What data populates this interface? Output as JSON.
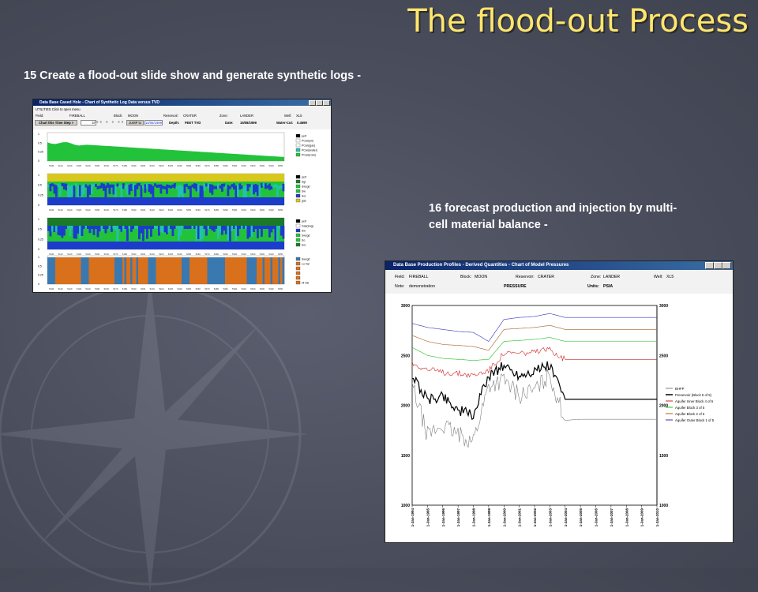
{
  "slide": {
    "title": "The flood-out Process",
    "caption_15": "15 Create a flood-out slide show and generate synthetic logs -",
    "caption_16": "16 forecast production and injection by multi-cell material balance -"
  },
  "log_window": {
    "title": "Data Base Cased Hole - Chart of Synthetic Log Data versus TVD",
    "menu": "UTILITIES   Click to open menu",
    "field_label": "Field:",
    "field": "FIREBALL",
    "block_label": "Block:",
    "block": "MOON",
    "reservoir_label": "Reservoir:",
    "reservoir": "CRATER",
    "zone_label": "Zone:",
    "zone": "LANDER",
    "well_label": "Well:",
    "well": "XL5",
    "timestep_button": "Chart this Time Step >",
    "timestep_value": "47",
    "date_value": "15/08/1999",
    "jump_button": "JUMP to",
    "depth_label": "Depth:",
    "depth": "FEET TVD",
    "date_label": "Date:",
    "date": "15/08/1999",
    "watercut_label": "Water-Cut:",
    "watercut": "0.4599",
    "legend1": [
      "perf",
      "PCws(oil)",
      "PCws(gas)",
      "PCws(water)",
      "PCws(rock)"
    ],
    "legend2": [
      "perf",
      "Sgr",
      "Swcgd",
      "Sw",
      "Sor",
      "gas"
    ],
    "legend3": [
      "perf",
      "Gas(swg)",
      "Sw",
      "Swcgd",
      "So",
      "Sor"
    ],
    "legend4": [
      "Swcgd",
      "Lo Val",
      "",
      "",
      "",
      "Hi Val"
    ],
    "colors": {
      "green": "#22c33a",
      "blue": "#1c3ccc",
      "yellow": "#d8c81c",
      "orange": "#d8701c",
      "steel": "#3a78b0"
    }
  },
  "pressure_window": {
    "title": "Data Base Production Profiles - Derived Quantities - Chart of Model Pressures",
    "field_label": "Field:",
    "field": "FIREBALL",
    "block_label": "Block:",
    "block": "MOON",
    "reservoir_label": "Reservoir:",
    "reservoir": "CRATER",
    "zone_label": "Zone:",
    "zone": "LANDER",
    "well_label": "Well:",
    "well": "XL5",
    "note_label": "Note:",
    "note": "demonstration",
    "chart_title": "PRESSURE",
    "units_label": "Units:",
    "units": "PSIA",
    "legend": [
      "BHFP",
      "Preservoir (Block 5 of 5)",
      "Aquifer Inner Block 4 of 5",
      "Aquifer Block 3 of 5",
      "Aquifer Block 2 of 5",
      "Aquifer Outer Block 1 of 5"
    ],
    "x_ticks": [
      "1-Jan-1994",
      "1-Jan-1995",
      "1-Jan-1996",
      "1-Jan-1997",
      "1-Jan-1998",
      "1-Jan-1999",
      "1-Jan-2000",
      "1-Jan-2001",
      "1-Jan-2002",
      "1-Jan-2003",
      "1-Jan-2004",
      "1-Jan-2005",
      "1-Jan-2006",
      "1-Jan-2007",
      "1-Jan-2008",
      "1-Jan-2009",
      "1-Jan-2010"
    ],
    "y_ticks": [
      "3000",
      "2500",
      "2000",
      "1500",
      "1000"
    ],
    "colors": {
      "bhfp": "#808080",
      "reservoir": "#000000",
      "inner": "#d02020",
      "mid": "#20c020",
      "block2": "#a06020",
      "outer": "#3030c0"
    }
  },
  "chart_data": {
    "type": "line",
    "title": "PRESSURE",
    "ylabel": "PSIA",
    "x": [
      "1-Jan-1994",
      "1-Jan-1995",
      "1-Jan-1996",
      "1-Jan-1997",
      "1-Jan-1998",
      "1-Jan-1999",
      "1-Jan-2000",
      "1-Jan-2001",
      "1-Jan-2002",
      "1-Jan-2003",
      "1-Jan-2004",
      "1-Jan-2005",
      "1-Jan-2006",
      "1-Jan-2007",
      "1-Jan-2008",
      "1-Jan-2009",
      "1-Jan-2010"
    ],
    "ylim": [
      1000,
      3000
    ],
    "series": [
      {
        "name": "Aquifer Outer Block 1 of 5",
        "values": [
          2820,
          2780,
          2760,
          2740,
          2730,
          2640,
          2860,
          2880,
          2890,
          2920,
          2880,
          2880,
          2880,
          2880,
          2880,
          2880,
          2880
        ]
      },
      {
        "name": "Aquifer Block 2 of 5",
        "values": [
          2700,
          2640,
          2610,
          2600,
          2590,
          2550,
          2760,
          2770,
          2780,
          2800,
          2760,
          2760,
          2760,
          2760,
          2760,
          2760,
          2760
        ]
      },
      {
        "name": "Aquifer Block 3 of 5",
        "values": [
          2580,
          2500,
          2470,
          2460,
          2450,
          2460,
          2640,
          2650,
          2660,
          2680,
          2640,
          2640,
          2640,
          2640,
          2640,
          2640,
          2640
        ]
      },
      {
        "name": "Aquifer Inner Block 4 of 5",
        "values": [
          2420,
          2360,
          2330,
          2320,
          2300,
          2350,
          2520,
          2520,
          2530,
          2560,
          2460,
          2460,
          2460,
          2460,
          2460,
          2460,
          2460
        ]
      },
      {
        "name": "Preservoir (Block 5 of 5)",
        "values": [
          2300,
          2050,
          2100,
          1950,
          1900,
          2300,
          2400,
          2300,
          2350,
          2400,
          2060,
          2060,
          2060,
          2060,
          2060,
          2060,
          2060
        ]
      },
      {
        "name": "BHFP",
        "values": [
          2200,
          1700,
          1800,
          1700,
          1650,
          2200,
          2250,
          2100,
          2150,
          2300,
          1850,
          1860,
          1860,
          1860,
          1860,
          1860,
          1860
        ]
      }
    ]
  }
}
